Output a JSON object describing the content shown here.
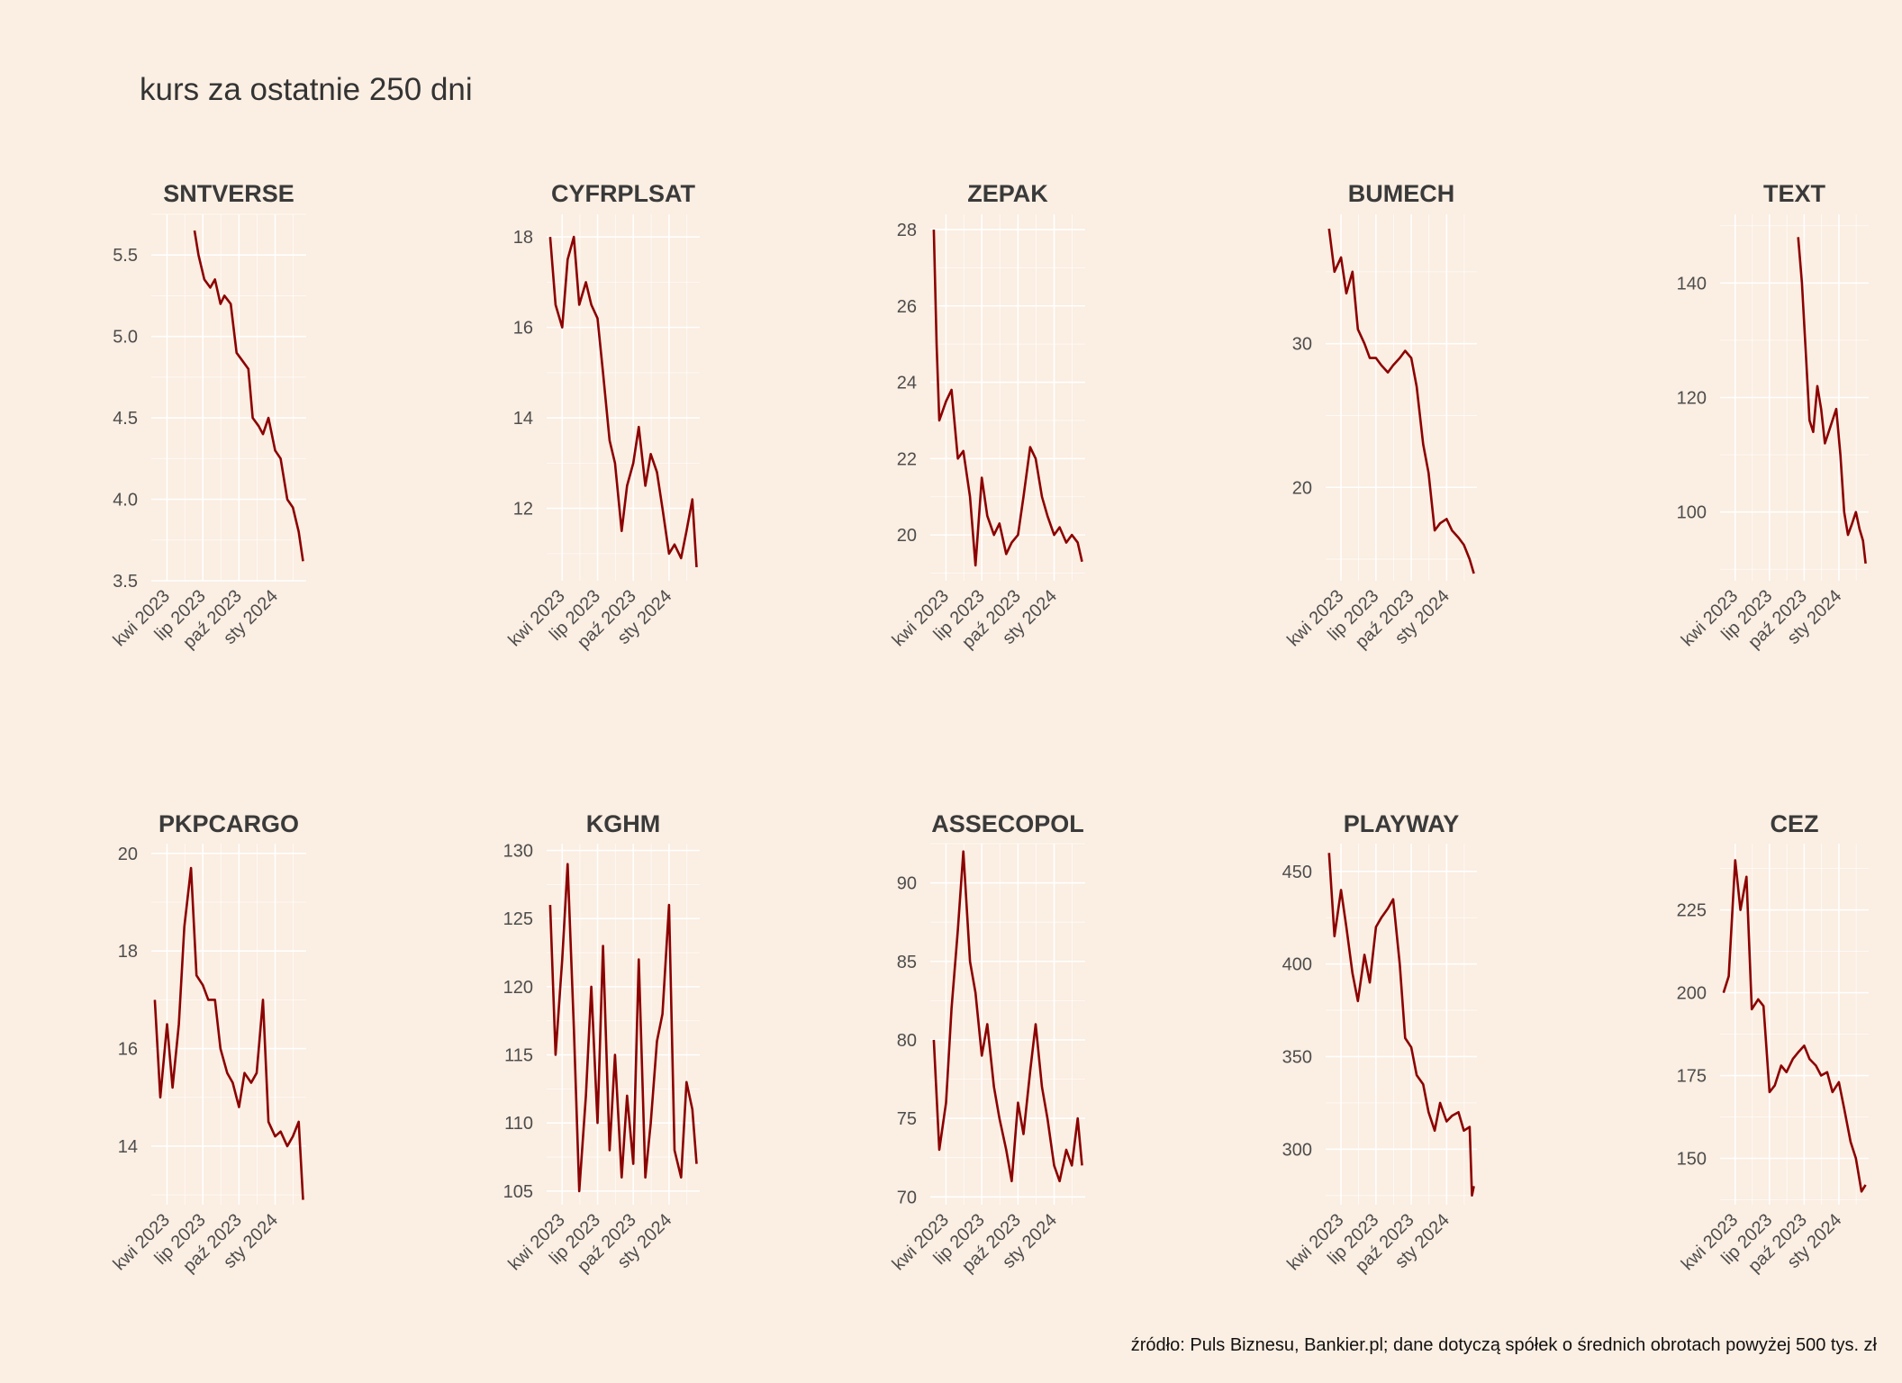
{
  "title": "kurs za ostatnie 250 dni",
  "source": "źródło: Puls Biznesu, Bankier.pl; dane dotyczą spółek o średnich obrotach powyżej 500 tys. zł",
  "colors": {
    "background": "#FBEEE2",
    "line": "#8B0000",
    "grid": "#FFFFFF"
  },
  "chart_data": [
    {
      "type": "line",
      "title": "SNTVERSE",
      "x_ticks": [
        "kwi 2023",
        "lip 2023",
        "paź 2023",
        "sty 2024"
      ],
      "y_ticks": [
        3.5,
        4.0,
        4.5,
        5.0,
        5.5
      ],
      "ylim": [
        3.5,
        5.75
      ],
      "xlim": [
        "2023-02-20",
        "2024-03-20"
      ],
      "grid": true,
      "x": [
        "2023-06-10",
        "2023-06-20",
        "2023-07-05",
        "2023-07-20",
        "2023-08-01",
        "2023-08-15",
        "2023-08-25",
        "2023-09-10",
        "2023-09-25",
        "2023-10-10",
        "2023-10-25",
        "2023-11-05",
        "2023-11-20",
        "2023-12-01",
        "2023-12-15",
        "2024-01-01",
        "2024-01-15",
        "2024-02-01",
        "2024-02-15",
        "2024-03-01",
        "2024-03-12"
      ],
      "y": [
        5.65,
        5.5,
        5.35,
        5.3,
        5.35,
        5.2,
        5.25,
        5.2,
        4.9,
        4.85,
        4.8,
        4.5,
        4.45,
        4.4,
        4.5,
        4.3,
        4.25,
        4.0,
        3.95,
        3.8,
        3.62
      ]
    },
    {
      "type": "line",
      "title": "CYFRPLSAT",
      "x_ticks": [
        "kwi 2023",
        "lip 2023",
        "paź 2023",
        "sty 2024"
      ],
      "y_ticks": [
        12,
        14,
        16,
        18
      ],
      "ylim": [
        10.4,
        18.5
      ],
      "xlim": [
        "2023-02-20",
        "2024-03-20"
      ],
      "grid": true,
      "x": [
        "2023-03-01",
        "2023-03-15",
        "2023-04-01",
        "2023-04-15",
        "2023-05-01",
        "2023-05-15",
        "2023-06-01",
        "2023-06-15",
        "2023-07-01",
        "2023-07-15",
        "2023-08-01",
        "2023-08-15",
        "2023-09-01",
        "2023-09-15",
        "2023-10-01",
        "2023-10-15",
        "2023-11-01",
        "2023-11-15",
        "2023-12-01",
        "2023-12-15",
        "2024-01-01",
        "2024-01-15",
        "2024-02-01",
        "2024-02-15",
        "2024-03-01",
        "2024-03-12"
      ],
      "y": [
        18.0,
        16.5,
        16.0,
        17.5,
        18.0,
        16.5,
        17.0,
        16.5,
        16.2,
        15.0,
        13.5,
        13.0,
        11.5,
        12.5,
        13.0,
        13.8,
        12.5,
        13.2,
        12.8,
        12.0,
        11.0,
        11.2,
        10.9,
        11.5,
        12.2,
        10.7
      ]
    },
    {
      "type": "line",
      "title": "ZEPAK",
      "x_ticks": [
        "kwi 2023",
        "lip 2023",
        "paź 2023",
        "sty 2024"
      ],
      "y_ticks": [
        20,
        22,
        24,
        26,
        28
      ],
      "ylim": [
        18.8,
        28.4
      ],
      "xlim": [
        "2023-02-20",
        "2024-03-20"
      ],
      "grid": true,
      "x": [
        "2023-03-01",
        "2023-03-08",
        "2023-03-15",
        "2023-04-01",
        "2023-04-15",
        "2023-05-01",
        "2023-05-15",
        "2023-06-01",
        "2023-06-15",
        "2023-07-01",
        "2023-07-15",
        "2023-08-01",
        "2023-08-15",
        "2023-09-01",
        "2023-09-15",
        "2023-10-01",
        "2023-10-15",
        "2023-11-01",
        "2023-11-15",
        "2023-12-01",
        "2023-12-15",
        "2024-01-01",
        "2024-01-15",
        "2024-02-01",
        "2024-02-15",
        "2024-03-01",
        "2024-03-12"
      ],
      "y": [
        28.0,
        25.0,
        23.0,
        23.5,
        23.8,
        22.0,
        22.2,
        21.0,
        19.2,
        21.5,
        20.5,
        20.0,
        20.3,
        19.5,
        19.8,
        20.0,
        21.0,
        22.3,
        22.0,
        21.0,
        20.5,
        20.0,
        20.2,
        19.8,
        20.0,
        19.8,
        19.3
      ]
    },
    {
      "type": "line",
      "title": "BUMECH",
      "x_ticks": [
        "kwi 2023",
        "lip 2023",
        "paź 2023",
        "sty 2024"
      ],
      "y_ticks": [
        20,
        30
      ],
      "ylim": [
        13.5,
        39
      ],
      "xlim": [
        "2023-02-20",
        "2024-03-20"
      ],
      "grid": true,
      "x": [
        "2023-03-01",
        "2023-03-15",
        "2023-04-01",
        "2023-04-15",
        "2023-05-01",
        "2023-05-15",
        "2023-06-01",
        "2023-06-15",
        "2023-07-01",
        "2023-07-15",
        "2023-08-01",
        "2023-08-15",
        "2023-09-01",
        "2023-09-15",
        "2023-10-01",
        "2023-10-15",
        "2023-11-01",
        "2023-11-15",
        "2023-12-01",
        "2023-12-15",
        "2024-01-01",
        "2024-01-15",
        "2024-02-01",
        "2024-02-15",
        "2024-03-01",
        "2024-03-12"
      ],
      "y": [
        38.0,
        35.0,
        36.0,
        33.5,
        35.0,
        31.0,
        30.0,
        29.0,
        29.0,
        28.5,
        28.0,
        28.5,
        29.0,
        29.5,
        29.0,
        27.0,
        23.0,
        21.0,
        17.0,
        17.5,
        17.8,
        17.0,
        16.5,
        16.0,
        15.0,
        14.0
      ]
    },
    {
      "type": "line",
      "title": "TEXT",
      "x_ticks": [
        "kwi 2023",
        "lip 2023",
        "paź 2023",
        "sty 2024"
      ],
      "y_ticks": [
        100,
        120,
        140
      ],
      "ylim": [
        88,
        152
      ],
      "xlim": [
        "2023-02-20",
        "2024-03-20"
      ],
      "grid": true,
      "x": [
        "2023-09-15",
        "2023-09-25",
        "2023-10-05",
        "2023-10-15",
        "2023-10-25",
        "2023-11-05",
        "2023-11-15",
        "2023-11-25",
        "2023-12-05",
        "2023-12-15",
        "2023-12-25",
        "2024-01-05",
        "2024-01-15",
        "2024-01-25",
        "2024-02-05",
        "2024-02-15",
        "2024-02-25",
        "2024-03-05",
        "2024-03-12"
      ],
      "y": [
        148,
        140,
        128,
        116,
        114,
        122,
        118,
        112,
        114,
        116,
        118,
        110,
        100,
        96,
        98,
        100,
        97,
        95,
        91
      ]
    },
    {
      "type": "line",
      "title": "PKPCARGO",
      "x_ticks": [
        "kwi 2023",
        "lip 2023",
        "paź 2023",
        "sty 2024"
      ],
      "y_ticks": [
        14,
        16,
        18,
        20
      ],
      "ylim": [
        12.8,
        20.2
      ],
      "xlim": [
        "2023-02-20",
        "2024-03-20"
      ],
      "grid": true,
      "x": [
        "2023-03-01",
        "2023-03-15",
        "2023-04-01",
        "2023-04-15",
        "2023-05-01",
        "2023-05-15",
        "2023-06-01",
        "2023-06-15",
        "2023-07-01",
        "2023-07-15",
        "2023-08-01",
        "2023-08-15",
        "2023-09-01",
        "2023-09-15",
        "2023-10-01",
        "2023-10-15",
        "2023-11-01",
        "2023-11-15",
        "2023-12-01",
        "2023-12-15",
        "2024-01-01",
        "2024-01-15",
        "2024-02-01",
        "2024-02-15",
        "2024-03-01",
        "2024-03-12"
      ],
      "y": [
        17.0,
        15.0,
        16.5,
        15.2,
        16.5,
        18.5,
        19.7,
        17.5,
        17.3,
        17.0,
        17.0,
        16.0,
        15.5,
        15.3,
        14.8,
        15.5,
        15.3,
        15.5,
        17.0,
        14.5,
        14.2,
        14.3,
        14.0,
        14.2,
        14.5,
        12.9
      ]
    },
    {
      "type": "line",
      "title": "KGHM",
      "x_ticks": [
        "kwi 2023",
        "lip 2023",
        "paź 2023",
        "sty 2024"
      ],
      "y_ticks": [
        105,
        110,
        115,
        120,
        125,
        130
      ],
      "ylim": [
        104,
        130.5
      ],
      "xlim": [
        "2023-02-20",
        "2024-03-20"
      ],
      "grid": true,
      "x": [
        "2023-03-01",
        "2023-03-15",
        "2023-04-01",
        "2023-04-15",
        "2023-05-01",
        "2023-05-15",
        "2023-06-01",
        "2023-06-15",
        "2023-07-01",
        "2023-07-15",
        "2023-08-01",
        "2023-08-15",
        "2023-09-01",
        "2023-09-15",
        "2023-10-01",
        "2023-10-15",
        "2023-11-01",
        "2023-11-15",
        "2023-12-01",
        "2023-12-15",
        "2024-01-01",
        "2024-01-15",
        "2024-02-01",
        "2024-02-15",
        "2024-03-01",
        "2024-03-12"
      ],
      "y": [
        126,
        115,
        122,
        129,
        117,
        105,
        112,
        120,
        110,
        123,
        108,
        115,
        106,
        112,
        107,
        122,
        106,
        110,
        116,
        118,
        126,
        108,
        106,
        113,
        111,
        107
      ]
    },
    {
      "type": "line",
      "title": "ASSECOPOL",
      "x_ticks": [
        "kwi 2023",
        "lip 2023",
        "paź 2023",
        "sty 2024"
      ],
      "y_ticks": [
        70,
        75,
        80,
        85,
        90
      ],
      "ylim": [
        69.5,
        92.5
      ],
      "xlim": [
        "2023-02-20",
        "2024-03-20"
      ],
      "grid": true,
      "x": [
        "2023-03-01",
        "2023-03-15",
        "2023-04-01",
        "2023-04-15",
        "2023-05-01",
        "2023-05-15",
        "2023-06-01",
        "2023-06-15",
        "2023-07-01",
        "2023-07-15",
        "2023-08-01",
        "2023-08-15",
        "2023-09-01",
        "2023-09-15",
        "2023-10-01",
        "2023-10-15",
        "2023-11-01",
        "2023-11-15",
        "2023-12-01",
        "2023-12-15",
        "2024-01-01",
        "2024-01-15",
        "2024-02-01",
        "2024-02-15",
        "2024-03-01",
        "2024-03-12"
      ],
      "y": [
        80,
        73,
        76,
        82,
        87,
        92,
        85,
        83,
        79,
        81,
        77,
        75,
        73,
        71,
        76,
        74,
        78,
        81,
        77,
        75,
        72,
        71,
        73,
        72,
        75,
        72
      ]
    },
    {
      "type": "line",
      "title": "PLAYWAY",
      "x_ticks": [
        "kwi 2023",
        "lip 2023",
        "paź 2023",
        "sty 2024"
      ],
      "y_ticks": [
        300,
        350,
        400,
        450
      ],
      "ylim": [
        270,
        465
      ],
      "xlim": [
        "2023-02-20",
        "2024-03-20"
      ],
      "grid": true,
      "x": [
        "2023-03-01",
        "2023-03-15",
        "2023-04-01",
        "2023-04-15",
        "2023-05-01",
        "2023-05-15",
        "2023-06-01",
        "2023-06-15",
        "2023-07-01",
        "2023-07-15",
        "2023-08-01",
        "2023-08-15",
        "2023-09-01",
        "2023-09-15",
        "2023-10-01",
        "2023-10-15",
        "2023-11-01",
        "2023-11-15",
        "2023-12-01",
        "2023-12-15",
        "2024-01-01",
        "2024-01-15",
        "2024-02-01",
        "2024-02-15",
        "2024-03-01",
        "2024-03-07",
        "2024-03-12"
      ],
      "y": [
        460,
        415,
        440,
        420,
        395,
        380,
        405,
        390,
        420,
        425,
        430,
        435,
        400,
        360,
        355,
        340,
        335,
        320,
        310,
        325,
        315,
        318,
        320,
        310,
        312,
        275,
        280
      ]
    },
    {
      "type": "line",
      "title": "CEZ",
      "x_ticks": [
        "kwi 2023",
        "lip 2023",
        "paź 2023",
        "sty 2024"
      ],
      "y_ticks": [
        150,
        175,
        200,
        225
      ],
      "ylim": [
        136,
        245
      ],
      "xlim": [
        "2023-02-20",
        "2024-03-20"
      ],
      "grid": true,
      "x": [
        "2023-03-01",
        "2023-03-15",
        "2023-04-01",
        "2023-04-15",
        "2023-05-01",
        "2023-05-15",
        "2023-06-01",
        "2023-06-15",
        "2023-07-01",
        "2023-07-15",
        "2023-08-01",
        "2023-08-15",
        "2023-09-01",
        "2023-09-15",
        "2023-10-01",
        "2023-10-15",
        "2023-11-01",
        "2023-11-15",
        "2023-12-01",
        "2023-12-15",
        "2024-01-01",
        "2024-01-15",
        "2024-02-01",
        "2024-02-15",
        "2024-03-01",
        "2024-03-12"
      ],
      "y": [
        200,
        205,
        240,
        225,
        235,
        195,
        198,
        196,
        170,
        172,
        178,
        176,
        180,
        182,
        184,
        180,
        178,
        175,
        176,
        170,
        173,
        165,
        155,
        150,
        140,
        142
      ]
    }
  ]
}
